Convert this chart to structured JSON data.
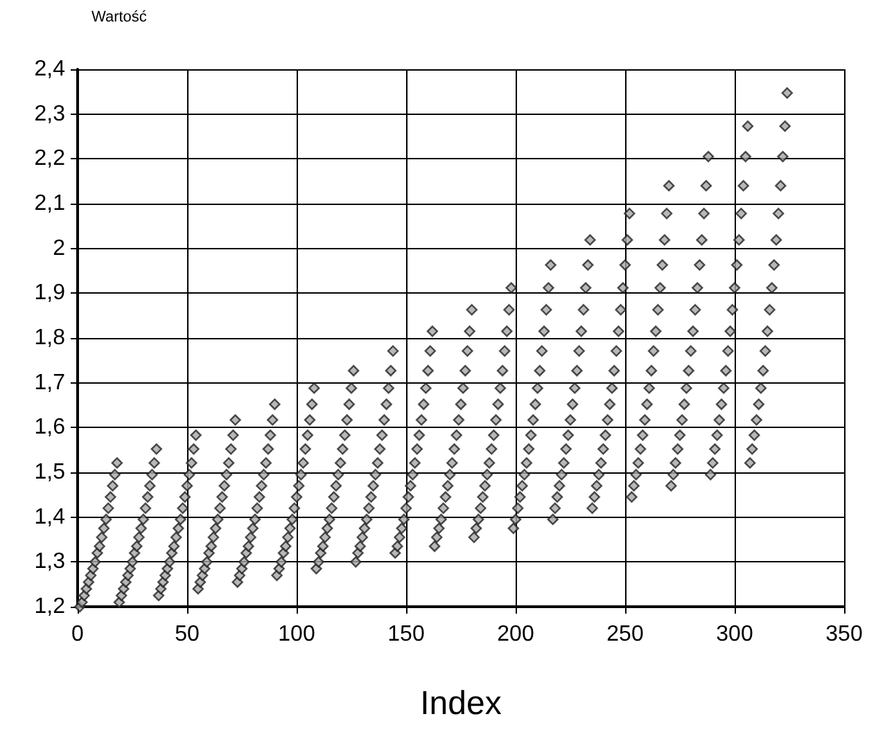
{
  "chart_data": {
    "type": "scatter",
    "xlabel": "Index",
    "ylabel": "Wartość",
    "xlim": [
      0,
      350
    ],
    "xticks": [
      0,
      50,
      100,
      150,
      200,
      250,
      300,
      350
    ],
    "ylim": [
      1.2,
      2.4
    ],
    "yticks": [
      {
        "value": 1.2,
        "label": "1,2"
      },
      {
        "value": 1.3,
        "label": "1,3"
      },
      {
        "value": 1.4,
        "label": "1,4"
      },
      {
        "value": 1.5,
        "label": "1,5"
      },
      {
        "value": 1.6,
        "label": "1,6"
      },
      {
        "value": 1.7,
        "label": "1,7"
      },
      {
        "value": 1.8,
        "label": "1,8"
      },
      {
        "value": 1.9,
        "label": "1,9"
      },
      {
        "value": 2,
        "label": "2"
      },
      {
        "value": 2.1,
        "label": "2,1"
      },
      {
        "value": 2.2,
        "label": "2,2"
      },
      {
        "value": 2.3,
        "label": "2,3"
      },
      {
        "value": 2.4,
        "label": "2,4"
      }
    ],
    "grid": true,
    "marker": "diamond",
    "series": [
      {
        "color": "#a6a6a6",
        "x": [
          1,
          2,
          3,
          4,
          5,
          6,
          7,
          8,
          9,
          10,
          11,
          12,
          13,
          14,
          15,
          16,
          17,
          18,
          19,
          20,
          21,
          22,
          23,
          24,
          25,
          26,
          27,
          28,
          29,
          30,
          31,
          32,
          33,
          34,
          35,
          36,
          37,
          38,
          39,
          40,
          41,
          42,
          43,
          44,
          45,
          46,
          47,
          48,
          49,
          50,
          51,
          52,
          53,
          54,
          55,
          56,
          57,
          58,
          59,
          60,
          61,
          62,
          63,
          64,
          65,
          66,
          67,
          68,
          69,
          70,
          71,
          72,
          73,
          74,
          75,
          76,
          77,
          78,
          79,
          80,
          81,
          82,
          83,
          84,
          85,
          86,
          87,
          88,
          89,
          90,
          91,
          92,
          93,
          94,
          95,
          96,
          97,
          98,
          99,
          100,
          101,
          102,
          103,
          104,
          105,
          106,
          107,
          108,
          109,
          110,
          111,
          112,
          113,
          114,
          115,
          116,
          117,
          118,
          119,
          120,
          121,
          122,
          123,
          124,
          125,
          126,
          127,
          128,
          129,
          130,
          131,
          132,
          133,
          134,
          135,
          136,
          137,
          138,
          139,
          140,
          141,
          142,
          143,
          144,
          145,
          146,
          147,
          148,
          149,
          150,
          151,
          152,
          153,
          154,
          155,
          156,
          157,
          158,
          159,
          160,
          161,
          162,
          163,
          164,
          165,
          166,
          167,
          168,
          169,
          170,
          171,
          172,
          173,
          174,
          175,
          176,
          177,
          178,
          179,
          180,
          181,
          182,
          183,
          184,
          185,
          186,
          187,
          188,
          189,
          190,
          191,
          192,
          193,
          194,
          195,
          196,
          197,
          198,
          199,
          200,
          201,
          202,
          203,
          204,
          205,
          206,
          207,
          208,
          209,
          210,
          211,
          212,
          213,
          214,
          215,
          216,
          217,
          218,
          219,
          220,
          221,
          222,
          223,
          224,
          225,
          226,
          227,
          228,
          229,
          230,
          231,
          232,
          233,
          234,
          235,
          236,
          237,
          238,
          239,
          240,
          241,
          242,
          243,
          244,
          245,
          246,
          247,
          248,
          249,
          250,
          251,
          252,
          253,
          254,
          255,
          256,
          257,
          258,
          259,
          260,
          261,
          262,
          263,
          264,
          265,
          266,
          267,
          268,
          269,
          270,
          271,
          272,
          273,
          274,
          275,
          276,
          277,
          278,
          279,
          280,
          281,
          282,
          283,
          284,
          285,
          286,
          287,
          288,
          289,
          290,
          291,
          292,
          293,
          294,
          295,
          296,
          297,
          298,
          299,
          300,
          301,
          302,
          303,
          304,
          305,
          306,
          307,
          308,
          309,
          310,
          311,
          312,
          313,
          314,
          315,
          316,
          317,
          318,
          319,
          320,
          321,
          322,
          323,
          324
        ],
        "values": [
          1.2,
          1.21,
          1.225,
          1.24,
          1.255,
          1.27,
          1.285,
          1.3,
          1.32,
          1.335,
          1.355,
          1.375,
          1.395,
          1.42,
          1.445,
          1.47,
          1.495,
          1.521,
          1.21,
          1.225,
          1.24,
          1.255,
          1.27,
          1.285,
          1.3,
          1.32,
          1.335,
          1.355,
          1.375,
          1.395,
          1.42,
          1.445,
          1.47,
          1.495,
          1.521,
          1.552,
          1.225,
          1.24,
          1.255,
          1.27,
          1.285,
          1.3,
          1.32,
          1.335,
          1.355,
          1.375,
          1.395,
          1.42,
          1.445,
          1.47,
          1.495,
          1.521,
          1.552,
          1.583,
          1.24,
          1.255,
          1.27,
          1.285,
          1.3,
          1.32,
          1.335,
          1.355,
          1.375,
          1.395,
          1.42,
          1.445,
          1.47,
          1.495,
          1.521,
          1.552,
          1.583,
          1.617,
          1.255,
          1.27,
          1.285,
          1.3,
          1.32,
          1.335,
          1.355,
          1.375,
          1.395,
          1.42,
          1.445,
          1.47,
          1.495,
          1.521,
          1.552,
          1.583,
          1.617,
          1.652,
          1.27,
          1.285,
          1.3,
          1.32,
          1.335,
          1.355,
          1.375,
          1.395,
          1.42,
          1.445,
          1.47,
          1.495,
          1.521,
          1.552,
          1.583,
          1.617,
          1.652,
          1.688,
          1.285,
          1.3,
          1.32,
          1.335,
          1.355,
          1.375,
          1.395,
          1.42,
          1.445,
          1.47,
          1.495,
          1.521,
          1.552,
          1.583,
          1.617,
          1.652,
          1.688,
          1.727,
          1.3,
          1.32,
          1.335,
          1.355,
          1.375,
          1.395,
          1.42,
          1.445,
          1.47,
          1.495,
          1.521,
          1.552,
          1.583,
          1.617,
          1.652,
          1.688,
          1.727,
          1.771,
          1.32,
          1.335,
          1.355,
          1.375,
          1.395,
          1.42,
          1.445,
          1.47,
          1.495,
          1.521,
          1.552,
          1.583,
          1.617,
          1.652,
          1.688,
          1.727,
          1.771,
          1.815,
          1.335,
          1.355,
          1.375,
          1.395,
          1.42,
          1.445,
          1.47,
          1.495,
          1.521,
          1.552,
          1.583,
          1.617,
          1.652,
          1.688,
          1.727,
          1.771,
          1.815,
          1.863,
          1.355,
          1.375,
          1.395,
          1.42,
          1.445,
          1.47,
          1.495,
          1.521,
          1.552,
          1.583,
          1.617,
          1.652,
          1.688,
          1.727,
          1.771,
          1.815,
          1.863,
          1.912,
          1.375,
          1.395,
          1.42,
          1.445,
          1.47,
          1.495,
          1.521,
          1.552,
          1.583,
          1.617,
          1.652,
          1.688,
          1.727,
          1.771,
          1.815,
          1.863,
          1.912,
          1.963,
          1.395,
          1.42,
          1.445,
          1.47,
          1.495,
          1.521,
          1.552,
          1.583,
          1.617,
          1.652,
          1.688,
          1.727,
          1.771,
          1.815,
          1.863,
          1.912,
          1.963,
          2.019,
          1.42,
          1.445,
          1.47,
          1.495,
          1.521,
          1.552,
          1.583,
          1.617,
          1.652,
          1.688,
          1.727,
          1.771,
          1.815,
          1.863,
          1.912,
          1.963,
          2.019,
          2.078,
          1.445,
          1.47,
          1.495,
          1.521,
          1.552,
          1.583,
          1.617,
          1.652,
          1.688,
          1.727,
          1.771,
          1.815,
          1.863,
          1.912,
          1.963,
          2.019,
          2.078,
          2.14,
          1.47,
          1.495,
          1.521,
          1.552,
          1.583,
          1.617,
          1.652,
          1.688,
          1.727,
          1.771,
          1.815,
          1.863,
          1.912,
          1.963,
          2.019,
          2.078,
          2.14,
          2.205,
          1.495,
          1.521,
          1.552,
          1.583,
          1.617,
          1.652,
          1.688,
          1.727,
          1.771,
          1.815,
          1.863,
          1.912,
          1.963,
          2.019,
          2.078,
          2.14,
          2.205,
          2.273,
          1.521,
          1.552,
          1.583,
          1.617,
          1.652,
          1.688,
          1.727,
          1.771,
          1.815,
          1.863,
          1.912,
          1.963,
          2.019,
          2.078,
          2.14,
          2.205,
          2.273,
          2.347
        ]
      }
    ]
  }
}
